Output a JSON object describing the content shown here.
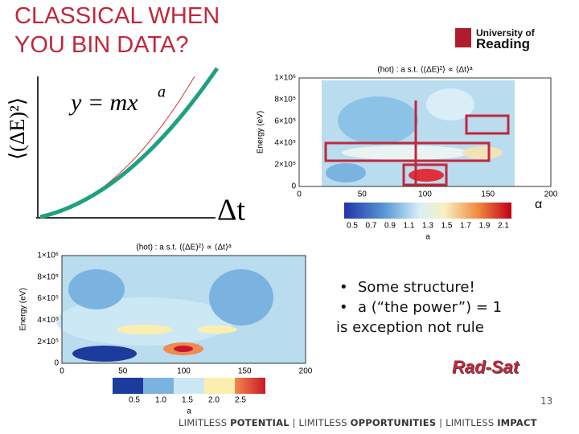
{
  "header": {
    "title_lines": [
      "CLASSICAL WHEN",
      "YOU BIN DATA?"
    ],
    "logo": [
      "University of",
      "Reading"
    ]
  },
  "sketch": {
    "equation": "y = mx",
    "exponent": "a",
    "x_label": "Δt",
    "y_label": "⟨(ΔE)²⟩"
  },
  "plot_top": {
    "title": "(hot) : a s.t. ⟨(ΔE)²⟩ ∝ ⟨Δt⟩ᵃ",
    "y_label": "Energy (eV)",
    "yticks": [
      "0",
      "2×10⁵",
      "4×10⁵",
      "6×10⁵",
      "8×10⁵",
      "1×10⁶"
    ],
    "xticks": [
      "0",
      "50",
      "100",
      "150",
      "200"
    ],
    "colorbar_ticks": [
      "0.5",
      "0.7",
      "0.9",
      "1.1",
      "1.3",
      "1.5",
      "1.7",
      "1.9",
      "2.1"
    ],
    "colorbar_label": "a",
    "annotation": "α"
  },
  "plot_bottom": {
    "title": "(hot) : a s.t. ⟨(ΔE)²⟩ ∝ ⟨Δt⟩ᵃ",
    "y_label": "Energy (eV)",
    "yticks": [
      "0",
      "2×10⁵",
      "4×10⁵",
      "6×10⁵",
      "8×10⁵",
      "1×10⁶"
    ],
    "xticks": [
      "0",
      "50",
      "100",
      "150",
      "200"
    ],
    "colorbar_ticks": [
      "0.5",
      "1.0",
      "1.5",
      "2.0",
      "2.5"
    ],
    "colorbar_label": "a"
  },
  "bullets": [
    "Some structure!",
    "a (“the power”) = 1"
  ],
  "note": "is exception not rule",
  "badge": "Rad-Sat",
  "page_number": "13",
  "footer": [
    {
      "text": "LIMITLESS ",
      "bold": false
    },
    {
      "text": "POTENTIAL",
      "bold": true
    },
    {
      "text": " | LIMITLESS ",
      "bold": false
    },
    {
      "text": "OPPORTUNITIES",
      "bold": true
    },
    {
      "text": " | LIMITLESS ",
      "bold": false
    },
    {
      "text": "IMPACT",
      "bold": true
    }
  ]
}
